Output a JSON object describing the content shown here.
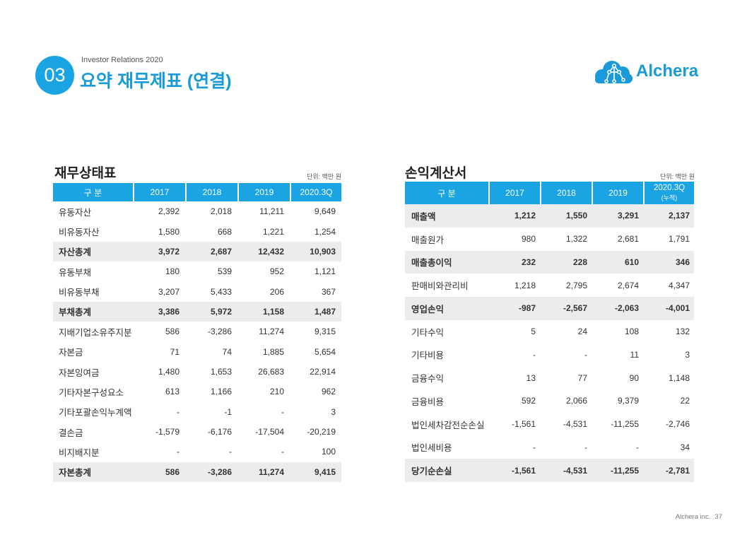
{
  "section": {
    "number": "03",
    "subtitle": "Investor Relations 2020",
    "title": "요약 재무제표 (연결)"
  },
  "logo": {
    "text": "Alchera",
    "icon": "cloud-network-icon"
  },
  "colors": {
    "accent": "#1ba4e3",
    "title": "#1a9ad8",
    "highlight_row": "#ececec",
    "text": "#333333"
  },
  "balance_sheet": {
    "title": "재무상태표",
    "unit": "단위: 백만 원",
    "headers": [
      "구 분",
      "2017",
      "2018",
      "2019",
      "2020.3Q"
    ],
    "rows": [
      {
        "label": "유동자산",
        "values": [
          "2,392",
          "2,018",
          "11,211",
          "9,649"
        ],
        "total": false
      },
      {
        "label": "비유동자산",
        "values": [
          "1,580",
          "668",
          "1,221",
          "1,254"
        ],
        "total": false
      },
      {
        "label": "자산총계",
        "values": [
          "3,972",
          "2,687",
          "12,432",
          "10,903"
        ],
        "total": true
      },
      {
        "label": "유동부채",
        "values": [
          "180",
          "539",
          "952",
          "1,121"
        ],
        "total": false
      },
      {
        "label": "비유동부채",
        "values": [
          "3,207",
          "5,433",
          "206",
          "367"
        ],
        "total": false
      },
      {
        "label": "부채총계",
        "values": [
          "3,386",
          "5,972",
          "1,158",
          "1,487"
        ],
        "total": true
      },
      {
        "label": "지배기업소유주지분",
        "values": [
          "586",
          "-3,286",
          "11,274",
          "9,315"
        ],
        "total": false
      },
      {
        "label": "자본금",
        "values": [
          "71",
          "74",
          "1,885",
          "5,654"
        ],
        "total": false
      },
      {
        "label": "자본잉여금",
        "values": [
          "1,480",
          "1,653",
          "26,683",
          "22,914"
        ],
        "total": false
      },
      {
        "label": "기타자본구성요소",
        "values": [
          "613",
          "1,166",
          "210",
          "962"
        ],
        "total": false
      },
      {
        "label": "기타포괄손익누계액",
        "values": [
          "-",
          "-1",
          "-",
          "3"
        ],
        "total": false
      },
      {
        "label": "결손금",
        "values": [
          "-1,579",
          "-6,176",
          "-17,504",
          "-20,219"
        ],
        "total": false
      },
      {
        "label": "비지배지분",
        "values": [
          "-",
          "-",
          "-",
          "100"
        ],
        "total": false
      },
      {
        "label": "자본총계",
        "values": [
          "586",
          "-3,286",
          "11,274",
          "9,415"
        ],
        "total": true
      }
    ]
  },
  "income_statement": {
    "title": "손익계산서",
    "unit": "단위: 백만 원",
    "headers": [
      "구 분",
      "2017",
      "2018",
      "2019",
      "2020.3Q"
    ],
    "header_note": "(누적)",
    "rows": [
      {
        "label": "매출액",
        "values": [
          "1,212",
          "1,550",
          "3,291",
          "2,137"
        ],
        "total": true
      },
      {
        "label": "매출원가",
        "values": [
          "980",
          "1,322",
          "2,681",
          "1,791"
        ],
        "total": false
      },
      {
        "label": "매출총이익",
        "values": [
          "232",
          "228",
          "610",
          "346"
        ],
        "total": true
      },
      {
        "label": "판매비와관리비",
        "values": [
          "1,218",
          "2,795",
          "2,674",
          "4,347"
        ],
        "total": false
      },
      {
        "label": "영업손익",
        "values": [
          "-987",
          "-2,567",
          "-2,063",
          "-4,001"
        ],
        "total": true
      },
      {
        "label": "기타수익",
        "values": [
          "5",
          "24",
          "108",
          "132"
        ],
        "total": false
      },
      {
        "label": "기타비용",
        "values": [
          "-",
          "-",
          "11",
          "3"
        ],
        "total": false
      },
      {
        "label": "금융수익",
        "values": [
          "13",
          "77",
          "90",
          "1,148"
        ],
        "total": false
      },
      {
        "label": "금융비용",
        "values": [
          "592",
          "2,066",
          "9,379",
          "22"
        ],
        "total": false
      },
      {
        "label": "법인세차감전순손실",
        "values": [
          "-1,561",
          "-4,531",
          "-11,255",
          "-2,746"
        ],
        "total": false
      },
      {
        "label": "법인세비용",
        "values": [
          "-",
          "-",
          "-",
          "34"
        ],
        "total": false
      },
      {
        "label": "당기순손실",
        "values": [
          "-1,561",
          "-4,531",
          "-11,255",
          "-2,781"
        ],
        "total": true
      }
    ]
  },
  "footer": {
    "company": "Alchera inc.",
    "page": "37"
  }
}
